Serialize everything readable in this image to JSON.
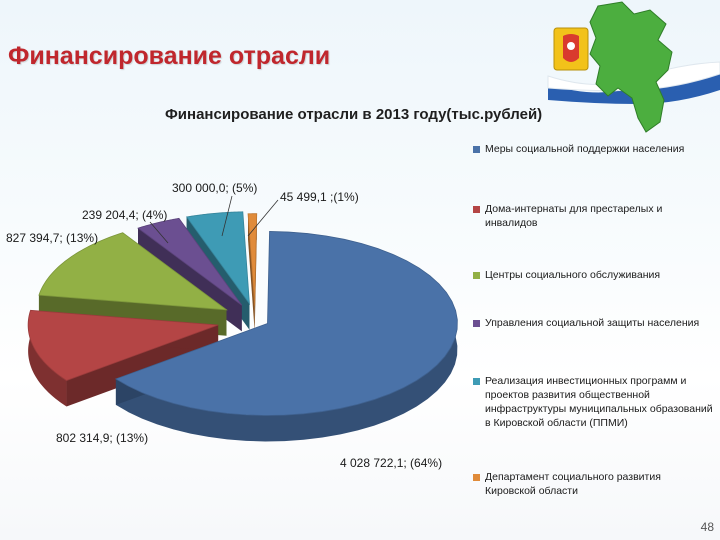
{
  "slide": {
    "title": "Финансирование отрасли",
    "page_number": "48"
  },
  "colors": {
    "title": "#c0272d",
    "series": [
      "#4a72a8",
      "#b44545",
      "#92b045",
      "#6b4f91",
      "#3e9bb5",
      "#e08b3a"
    ]
  },
  "chart_data": {
    "type": "pie",
    "title": "Финансирование отрасли в 2013 году(тыс.рублей)",
    "style": "3d-exploded",
    "legend_position": "right",
    "slices": [
      {
        "name": "Меры социальной поддержки населения",
        "value": 4028722.1,
        "percent": 64,
        "label": "4 028 722,1; (64%)"
      },
      {
        "name": "Дома-интернаты для престарелых и инвалидов",
        "value": 802314.9,
        "percent": 13,
        "label": "802 314,9; (13%)"
      },
      {
        "name": "Центры социального обслуживания",
        "value": 827394.7,
        "percent": 13,
        "label": "827 394,7; (13%)"
      },
      {
        "name": "Управления социальной защиты населения",
        "value": 239204.4,
        "percent": 4,
        "label": "239 204,4; (4%)"
      },
      {
        "name": "Реализация инвестиционных программ и проектов развития общественной инфраструктуры муниципальных образований в Кировской области (ППМИ)",
        "value": 300000.0,
        "percent": 5,
        "label": "300 000,0; (5%)"
      },
      {
        "name": "Департамент социального развития Кировской области",
        "value": 45499.1,
        "percent": 1,
        "label": "45 499,1 ;(1%)"
      }
    ]
  }
}
